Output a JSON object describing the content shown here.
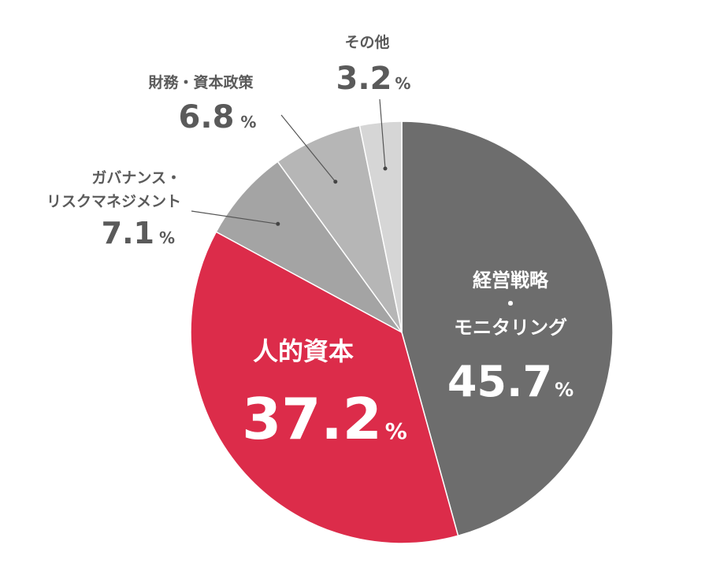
{
  "chart_data": {
    "type": "pie",
    "start": "12 o'clock",
    "direction": "clockwise",
    "labels": [
      "経営戦略・モニタリング",
      "人的資本",
      "ガバナンス・リスクマネジメント",
      "財務・資本政策",
      "その他"
    ],
    "values": [
      45.7,
      37.2,
      7.1,
      6.8,
      3.2
    ],
    "colors": [
      "#6d6d6d",
      "#dc2c4a",
      "#a4a4a4",
      "#b6b6b6",
      "#d6d6d6"
    ],
    "unit": "%",
    "slices": [
      {
        "name_lines": [
          "経営戦略",
          "・",
          "モニタリング"
        ],
        "value_text": "45.7",
        "unit": "%"
      },
      {
        "name_lines": [
          "人的資本"
        ],
        "value_text": "37.2",
        "unit": "%"
      },
      {
        "name_lines": [
          "ガバナンス・",
          "リスクマネジメント"
        ],
        "value_text": "7.1",
        "unit": "%"
      },
      {
        "name_lines": [
          "財務・資本政策"
        ],
        "value_text": "6.8",
        "unit": "%"
      },
      {
        "name_lines": [
          "その他"
        ],
        "value_text": "3.2",
        "unit": "%"
      }
    ]
  }
}
